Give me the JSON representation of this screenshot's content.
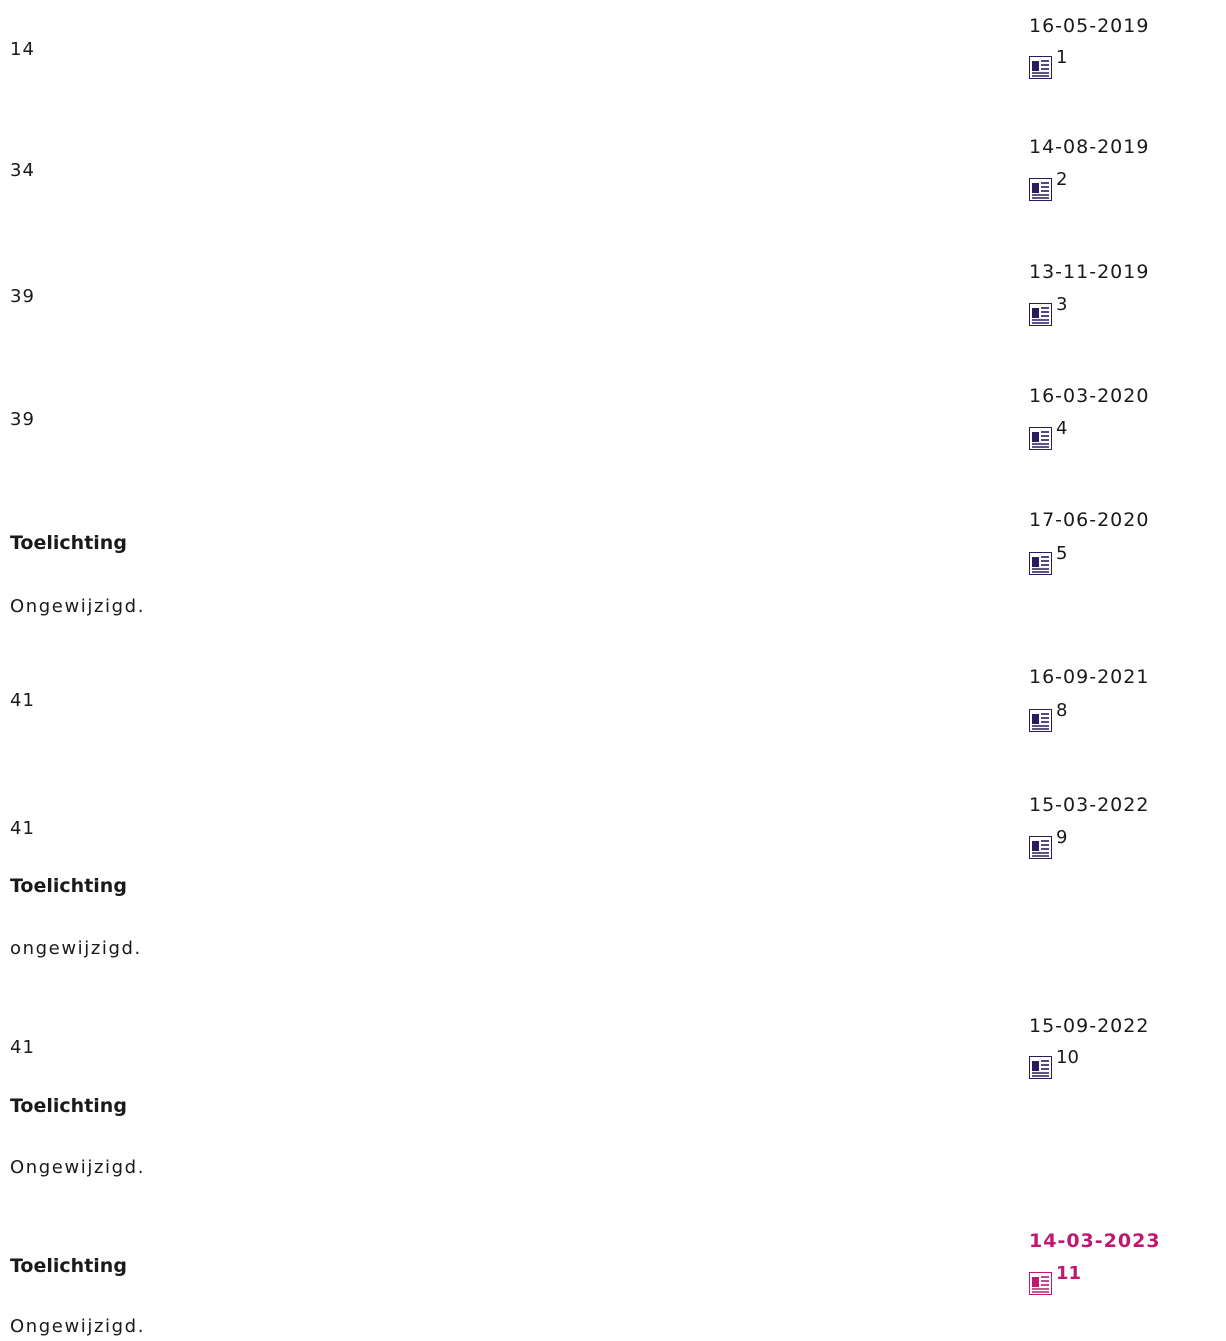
{
  "colors": {
    "text": "#1a1a1a",
    "icon": "#2a1a5e",
    "current": "#c01870"
  },
  "icon": "document-icon",
  "entries": [
    {
      "number": "14",
      "date": "16-05-2019",
      "version": "1"
    },
    {
      "number": "34",
      "date": "14-08-2019",
      "version": "2"
    },
    {
      "number": "39",
      "date": "13-11-2019",
      "version": "3"
    },
    {
      "number": "39",
      "date": "16-03-2020",
      "version": "4"
    },
    {
      "heading": "Toelichting",
      "text": "Ongewijzigd.",
      "date": "17-06-2020",
      "version": "5"
    },
    {
      "number": "41",
      "date": "16-09-2021",
      "version": "8"
    },
    {
      "number": "41",
      "heading": "Toelichting",
      "text": "ongewijzigd.",
      "date": "15-03-2022",
      "version": "9"
    },
    {
      "number": "41",
      "heading": "Toelichting",
      "text": "Ongewijzigd.",
      "date": "15-09-2022",
      "version": "10"
    },
    {
      "heading": "Toelichting",
      "text": "Ongewijzigd.",
      "date": "14-03-2023",
      "version": "11",
      "current": true
    }
  ]
}
